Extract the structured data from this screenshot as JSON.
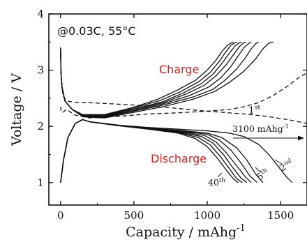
{
  "chart_data": {
    "type": "line",
    "title": "",
    "xlabel": "Capacity / mAhg",
    "xlabel_sup": "-1",
    "ylabel": "Voltage / V",
    "xlim": [
      -80,
      1680
    ],
    "ylim": [
      0.6,
      4.0
    ],
    "xticks": [
      0,
      500,
      1000,
      1500
    ],
    "yticks": [
      1,
      2,
      3,
      4
    ],
    "condition_label": "@0.03C, 55°C",
    "region_labels": {
      "charge": "Charge",
      "discharge": "Discharge"
    },
    "region_label_color": "#d62020",
    "annotations": {
      "first": {
        "text": "1",
        "sup": "st"
      },
      "second": {
        "text": "2",
        "sup": "nd"
      },
      "fifth": {
        "text": "5",
        "sup": "th"
      },
      "fortieth": {
        "text": "40",
        "sup": "th"
      },
      "capacity": {
        "text": "3100 mAhg",
        "sup": "-1"
      }
    },
    "grid": false,
    "legend": "none",
    "first_cycle_dashed": [
      {
        "name": "",
        "x": [
          0,
          5,
          15,
          40,
          100,
          200,
          350,
          500,
          650,
          800,
          950,
          1100,
          1250,
          1400,
          1550,
          1680
        ],
        "y": [
          3.4,
          2.85,
          2.55,
          2.45,
          2.43,
          2.42,
          2.4,
          2.38,
          2.35,
          2.32,
          2.28,
          2.25,
          2.22,
          2.18,
          2.12,
          2.05
        ]
      },
      {
        "name": "",
        "x": [
          0,
          5,
          15,
          40,
          100,
          200,
          400,
          600,
          800,
          1000,
          1150,
          1250,
          1350,
          1450,
          1550,
          1630,
          1680
        ],
        "y": [
          2.35,
          2.25,
          2.25,
          2.3,
          2.2,
          2.15,
          2.18,
          2.22,
          2.24,
          2.27,
          2.3,
          2.35,
          2.42,
          2.55,
          2.72,
          2.88,
          2.95
        ]
      }
    ],
    "discharge_series": [
      {
        "name": "",
        "x": [
          0,
          5,
          20,
          50,
          100,
          150,
          200,
          400,
          600,
          800,
          1000,
          1150,
          1250,
          1350,
          1420,
          1480,
          1540,
          1580
        ],
        "y": [
          1.0,
          1.1,
          1.4,
          1.8,
          2.05,
          2.12,
          2.08,
          2.02,
          1.98,
          1.95,
          1.92,
          1.88,
          1.82,
          1.68,
          1.5,
          1.3,
          1.1,
          1.0
        ]
      },
      {
        "name": "",
        "x": [
          0,
          5,
          20,
          50,
          100,
          150,
          200,
          400,
          600,
          800,
          1000,
          1100,
          1200,
          1270,
          1330,
          1380
        ],
        "y": [
          1.0,
          1.1,
          1.4,
          1.8,
          2.05,
          2.12,
          2.08,
          2.02,
          1.97,
          1.93,
          1.88,
          1.8,
          1.62,
          1.4,
          1.15,
          1.0
        ]
      },
      {
        "name": "",
        "x": [
          0,
          5,
          20,
          50,
          100,
          150,
          200,
          400,
          600,
          800,
          1000,
          1080,
          1160,
          1230,
          1290,
          1340
        ],
        "y": [
          1.0,
          1.1,
          1.4,
          1.8,
          2.05,
          2.12,
          2.08,
          2.02,
          1.97,
          1.92,
          1.86,
          1.76,
          1.58,
          1.35,
          1.12,
          1.0
        ]
      },
      {
        "name": "",
        "x": [
          0,
          5,
          20,
          50,
          100,
          150,
          200,
          400,
          600,
          800,
          980,
          1060,
          1130,
          1200,
          1260,
          1300
        ],
        "y": [
          1.0,
          1.1,
          1.4,
          1.8,
          2.05,
          2.12,
          2.08,
          2.02,
          1.96,
          1.91,
          1.84,
          1.72,
          1.53,
          1.3,
          1.1,
          1.0
        ]
      },
      {
        "name": "",
        "x": [
          0,
          5,
          20,
          50,
          100,
          150,
          200,
          400,
          600,
          800,
          960,
          1040,
          1110,
          1170,
          1230,
          1270
        ],
        "y": [
          1.0,
          1.1,
          1.4,
          1.8,
          2.05,
          2.12,
          2.08,
          2.01,
          1.96,
          1.9,
          1.82,
          1.7,
          1.5,
          1.28,
          1.08,
          1.0
        ]
      },
      {
        "name": "",
        "x": [
          0,
          5,
          20,
          50,
          100,
          150,
          200,
          400,
          600,
          800,
          940,
          1020,
          1090,
          1150,
          1200,
          1240
        ],
        "y": [
          1.0,
          1.1,
          1.4,
          1.8,
          2.05,
          2.12,
          2.08,
          2.01,
          1.95,
          1.89,
          1.8,
          1.67,
          1.46,
          1.25,
          1.07,
          1.0
        ]
      },
      {
        "name": "",
        "x": [
          0,
          5,
          20,
          50,
          100,
          150,
          200,
          400,
          600,
          800,
          920,
          1000,
          1070,
          1130,
          1180,
          1210
        ],
        "y": [
          1.0,
          1.1,
          1.4,
          1.8,
          2.05,
          2.12,
          2.08,
          2.01,
          1.95,
          1.88,
          1.78,
          1.64,
          1.43,
          1.22,
          1.06,
          1.0
        ]
      }
    ],
    "charge_series": [
      {
        "name": "",
        "x": [
          0,
          3,
          10,
          30,
          80,
          150,
          300,
          500,
          700,
          900,
          1050,
          1150,
          1250,
          1330,
          1380,
          1420,
          1450
        ],
        "y": [
          3.4,
          2.95,
          2.7,
          2.45,
          2.3,
          2.17,
          2.15,
          2.25,
          2.35,
          2.48,
          2.62,
          2.78,
          2.98,
          3.2,
          3.38,
          3.48,
          3.5
        ]
      },
      {
        "name": "",
        "x": [
          0,
          3,
          10,
          30,
          80,
          150,
          300,
          500,
          700,
          900,
          1040,
          1120,
          1200,
          1260,
          1300,
          1330,
          1350
        ],
        "y": [
          3.4,
          2.95,
          2.7,
          2.45,
          2.3,
          2.18,
          2.16,
          2.27,
          2.38,
          2.52,
          2.66,
          2.82,
          3.02,
          3.22,
          3.38,
          3.47,
          3.5
        ]
      },
      {
        "name": "",
        "x": [
          0,
          3,
          10,
          30,
          80,
          150,
          300,
          500,
          700,
          880,
          1010,
          1090,
          1160,
          1210,
          1250,
          1280,
          1300
        ],
        "y": [
          3.4,
          2.95,
          2.7,
          2.45,
          2.3,
          2.19,
          2.17,
          2.28,
          2.4,
          2.55,
          2.7,
          2.86,
          3.06,
          3.25,
          3.4,
          3.47,
          3.5
        ]
      },
      {
        "name": "",
        "x": [
          0,
          3,
          10,
          30,
          80,
          150,
          300,
          500,
          700,
          860,
          980,
          1060,
          1130,
          1180,
          1220,
          1245,
          1265
        ],
        "y": [
          3.4,
          2.95,
          2.7,
          2.45,
          2.3,
          2.19,
          2.18,
          2.3,
          2.42,
          2.58,
          2.73,
          2.9,
          3.1,
          3.28,
          3.42,
          3.48,
          3.5
        ]
      },
      {
        "name": "",
        "x": [
          0,
          3,
          10,
          30,
          80,
          150,
          300,
          500,
          700,
          840,
          960,
          1040,
          1100,
          1150,
          1190,
          1215,
          1235
        ],
        "y": [
          3.4,
          2.95,
          2.7,
          2.45,
          2.3,
          2.2,
          2.19,
          2.31,
          2.44,
          2.6,
          2.76,
          2.93,
          3.12,
          3.3,
          3.43,
          3.48,
          3.5
        ]
      },
      {
        "name": "",
        "x": [
          0,
          3,
          10,
          30,
          80,
          150,
          300,
          500,
          680,
          820,
          940,
          1020,
          1080,
          1125,
          1160,
          1185,
          1205
        ],
        "y": [
          3.4,
          2.95,
          2.7,
          2.45,
          2.3,
          2.2,
          2.2,
          2.33,
          2.46,
          2.62,
          2.79,
          2.96,
          3.15,
          3.32,
          3.44,
          3.48,
          3.5
        ]
      },
      {
        "name": "",
        "x": [
          0,
          3,
          10,
          30,
          80,
          150,
          300,
          500,
          660,
          800,
          920,
          1000,
          1060,
          1105,
          1140,
          1160,
          1180
        ],
        "y": [
          3.4,
          2.95,
          2.7,
          2.45,
          2.3,
          2.21,
          2.21,
          2.34,
          2.48,
          2.65,
          2.82,
          3.0,
          3.18,
          3.35,
          3.45,
          3.48,
          3.5
        ]
      }
    ]
  }
}
